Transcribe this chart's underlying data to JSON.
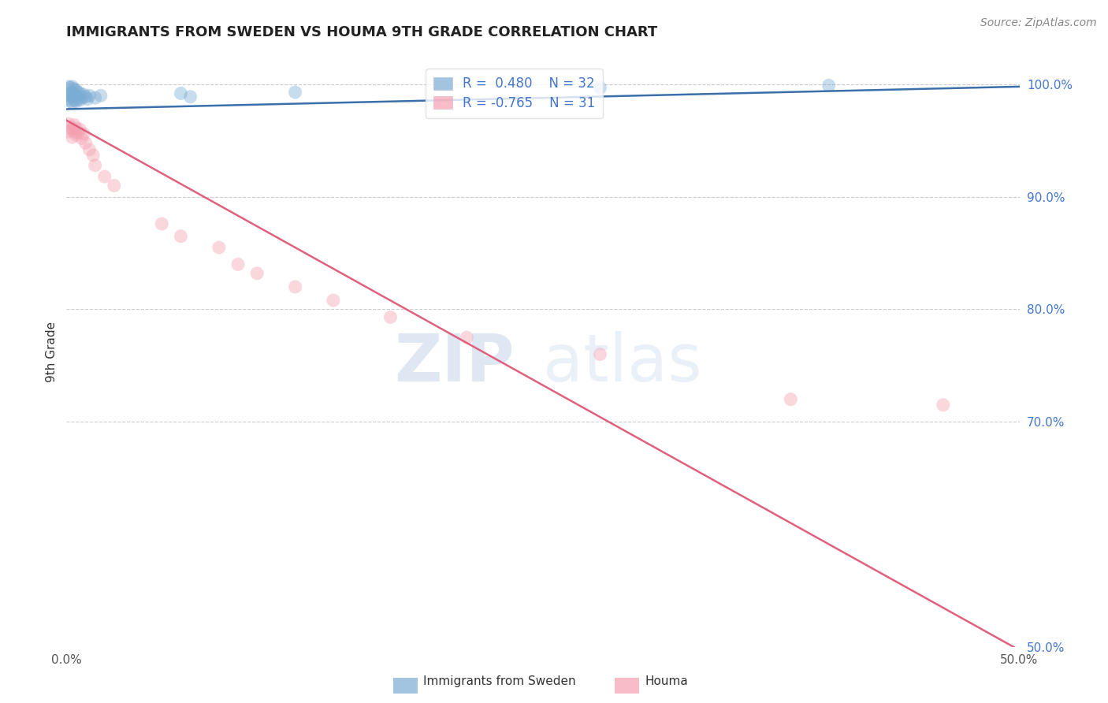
{
  "title": "IMMIGRANTS FROM SWEDEN VS HOUMA 9TH GRADE CORRELATION CHART",
  "source": "Source: ZipAtlas.com",
  "ylabel": "9th Grade",
  "legend_blue_r": "R =  0.480",
  "legend_blue_n": "N = 32",
  "legend_pink_r": "R = -0.765",
  "legend_pink_n": "N = 31",
  "blue_color": "#7bacd4",
  "pink_color": "#f4a0b0",
  "blue_line_color": "#3a6faa",
  "pink_line_color": "#e06080",
  "watermark_zip": "ZIP",
  "watermark_atlas": "atlas",
  "xmin": 0.0,
  "xmax": 0.5,
  "ymin": 0.5,
  "ymax": 1.025,
  "blue_scatter_x": [
    0.001,
    0.001,
    0.001,
    0.002,
    0.002,
    0.002,
    0.003,
    0.003,
    0.003,
    0.003,
    0.004,
    0.004,
    0.004,
    0.005,
    0.005,
    0.005,
    0.006,
    0.006,
    0.007,
    0.007,
    0.008,
    0.009,
    0.01,
    0.011,
    0.012,
    0.015,
    0.018,
    0.06,
    0.065,
    0.12,
    0.28,
    0.4
  ],
  "blue_scatter_y": [
    0.987,
    0.992,
    0.998,
    0.985,
    0.99,
    0.997,
    0.984,
    0.989,
    0.993,
    0.998,
    0.986,
    0.991,
    0.996,
    0.985,
    0.99,
    0.995,
    0.987,
    0.993,
    0.986,
    0.992,
    0.988,
    0.991,
    0.989,
    0.987,
    0.99,
    0.988,
    0.99,
    0.992,
    0.989,
    0.993,
    0.997,
    0.999
  ],
  "pink_scatter_x": [
    0.001,
    0.001,
    0.002,
    0.003,
    0.003,
    0.004,
    0.004,
    0.005,
    0.005,
    0.006,
    0.007,
    0.008,
    0.009,
    0.01,
    0.012,
    0.014,
    0.015,
    0.02,
    0.025,
    0.05,
    0.06,
    0.08,
    0.09,
    0.1,
    0.12,
    0.14,
    0.17,
    0.21,
    0.28,
    0.38,
    0.46
  ],
  "pink_scatter_y": [
    0.965,
    0.958,
    0.962,
    0.96,
    0.953,
    0.958,
    0.964,
    0.955,
    0.961,
    0.957,
    0.96,
    0.952,
    0.956,
    0.948,
    0.942,
    0.937,
    0.928,
    0.918,
    0.91,
    0.876,
    0.865,
    0.855,
    0.84,
    0.832,
    0.82,
    0.808,
    0.793,
    0.775,
    0.76,
    0.72,
    0.715
  ],
  "blue_trend_x": [
    0.0,
    0.5
  ],
  "blue_trend_y": [
    0.978,
    0.998
  ],
  "pink_trend_x": [
    0.0,
    0.5
  ],
  "pink_trend_y": [
    0.968,
    0.497
  ],
  "ytick_positions": [
    0.5,
    0.7,
    0.8,
    0.9,
    1.0
  ],
  "ytick_labels_right": [
    "50.0%",
    "70.0%",
    "80.0%",
    "90.0%",
    "100.0%"
  ],
  "grid_yticks": [
    0.7,
    0.8,
    0.9,
    1.0
  ],
  "xtick_positions": [
    0.0,
    0.1,
    0.2,
    0.3,
    0.4,
    0.5
  ],
  "xtick_labels": [
    "0.0%",
    "",
    "",
    "",
    "",
    "50.0%"
  ],
  "grid_color": "#cccccc",
  "background_color": "#ffffff",
  "right_tick_color": "#4477cc",
  "scatter_size": 150,
  "scatter_alpha": 0.42,
  "title_fontsize": 13,
  "source_fontsize": 10,
  "tick_fontsize": 11,
  "legend_fontsize": 12
}
